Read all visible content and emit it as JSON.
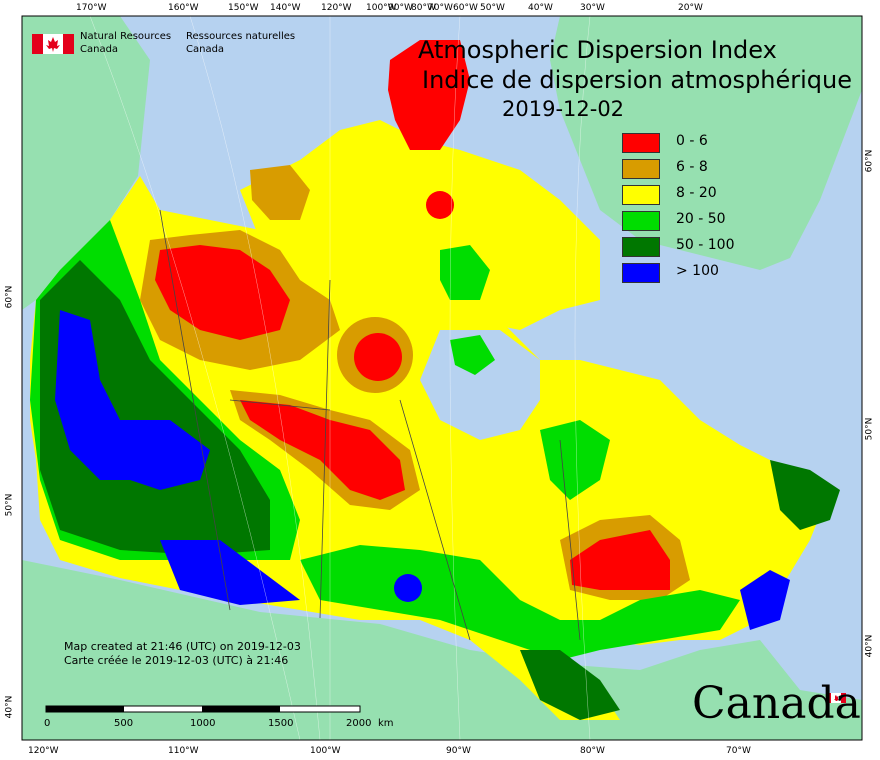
{
  "title": {
    "en": "Atmospheric Dispersion Index",
    "fr": "Indice de dispersion atmosphérique",
    "date": "2019-12-02"
  },
  "agency": {
    "en_line1": "Natural Resources",
    "en_line2": "Canada",
    "fr_line1": "Ressources naturelles",
    "fr_line2": "Canada"
  },
  "legend": [
    {
      "label": "0 - 6",
      "color": "#ff0000"
    },
    {
      "label": "6 - 8",
      "color": "#d89c00"
    },
    {
      "label": "8 - 20",
      "color": "#ffff00"
    },
    {
      "label": "20 - 50",
      "color": "#00dd00"
    },
    {
      "label": "50 - 100",
      "color": "#007700"
    },
    {
      "label": "> 100",
      "color": "#0000ff"
    }
  ],
  "credits": {
    "en": "Map created at 21:46 (UTC) on 2019-12-03",
    "fr": "Carte créée le 2019-12-03 (UTC) à 21:46"
  },
  "scalebar": {
    "labels": [
      "0",
      "500",
      "1000",
      "1500",
      "2000"
    ],
    "unit": "km"
  },
  "wordmark": "Canada",
  "graticule": {
    "top": [
      "170°W",
      "160°W",
      "150°W",
      "140°W",
      "120°W",
      "100°W",
      "90°W",
      "80°W",
      "70°W",
      "60°W",
      "50°W",
      "40°W",
      "30°W",
      "20°W"
    ],
    "bottom": [
      "120°W",
      "110°W",
      "100°W",
      "90°W",
      "80°W",
      "70°W"
    ],
    "left": [
      "60°N",
      "50°N",
      "40°N"
    ],
    "right": [
      "60°N",
      "50°N",
      "40°N"
    ]
  },
  "colors": {
    "ocean": "#b6d2f0",
    "land_outside": "#96e0b0",
    "border": "#444444"
  }
}
